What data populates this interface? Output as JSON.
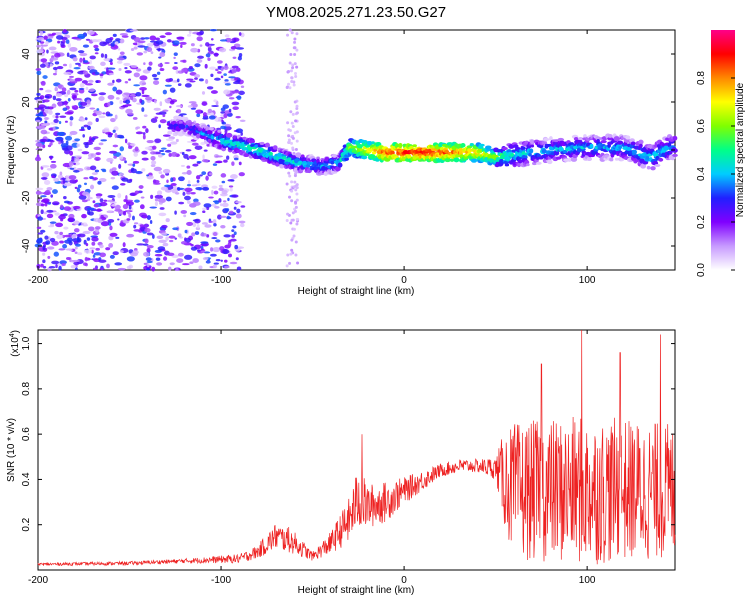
{
  "title": "YM08.2025.271.23.50.G27",
  "colors": {
    "snr_line": "#ee2222",
    "axis": "#000000",
    "background": "#ffffff"
  },
  "chart_data": [
    {
      "type": "heatmap",
      "name": "spectrogram",
      "xlabel": "Height of straight line (km)",
      "ylabel": "Frequency (Hz)",
      "xlim": [
        -200,
        148
      ],
      "ylim": [
        -50,
        50
      ],
      "xticks": [
        -200,
        -100,
        0,
        100
      ],
      "yticks": [
        -40,
        -20,
        0,
        20,
        40
      ],
      "colorbar": {
        "label": "Normalized spectral amplitude",
        "range": [
          0,
          1
        ],
        "ticks": [
          0.0,
          0.2,
          0.4,
          0.6,
          0.8
        ],
        "colormap": [
          "#ffffff",
          "#c79aff",
          "#8000ff",
          "#2020ff",
          "#00ccff",
          "#00ff88",
          "#80ff00",
          "#ffff00",
          "#ff8800",
          "#ff0000",
          "#ff0088"
        ]
      },
      "ridge": [
        {
          "x": -120,
          "f": 10,
          "amp": 0.3
        },
        {
          "x": -100,
          "f": 4,
          "amp": 0.45
        },
        {
          "x": -80,
          "f": 0,
          "amp": 0.5
        },
        {
          "x": -60,
          "f": -5,
          "amp": 0.45
        },
        {
          "x": -45,
          "f": -7,
          "amp": 0.4
        },
        {
          "x": -35,
          "f": -5,
          "amp": 0.45
        },
        {
          "x": -30,
          "f": 1,
          "amp": 0.6
        },
        {
          "x": -10,
          "f": -1,
          "amp": 0.85
        },
        {
          "x": 10,
          "f": -1,
          "amp": 0.9
        },
        {
          "x": 40,
          "f": -1,
          "amp": 0.75
        },
        {
          "x": 50,
          "f": -3,
          "amp": 0.6
        },
        {
          "x": 60,
          "f": -2,
          "amp": 0.45
        },
        {
          "x": 80,
          "f": 0,
          "amp": 0.4
        },
        {
          "x": 100,
          "f": 1,
          "amp": 0.4
        },
        {
          "x": 120,
          "f": 1,
          "amp": 0.4
        },
        {
          "x": 135,
          "f": -3,
          "amp": 0.45
        },
        {
          "x": 148,
          "f": 2,
          "amp": 0.4
        }
      ]
    },
    {
      "type": "line",
      "name": "snr",
      "xlabel": "Height of straight line (km)",
      "ylabel": "SNR (10 * v/v)",
      "scale_label": "(x10",
      "scale_exp": "4",
      "xlim": [
        -200,
        148
      ],
      "ylim": [
        0,
        1.06
      ],
      "xticks": [
        -200,
        -100,
        0,
        100
      ],
      "yticks": [
        0.2,
        0.4,
        0.6,
        0.8,
        1.0
      ],
      "envelope": {
        "x": [
          -200,
          -150,
          -120,
          -90,
          -80,
          -70,
          -60,
          -50,
          -40,
          -30,
          -25,
          -20,
          -10,
          0,
          20,
          30,
          40,
          50,
          55,
          60,
          80,
          100,
          120,
          148
        ],
        "y": [
          0.025,
          0.03,
          0.04,
          0.05,
          0.08,
          0.15,
          0.12,
          0.06,
          0.12,
          0.22,
          0.32,
          0.28,
          0.3,
          0.35,
          0.44,
          0.46,
          0.46,
          0.45,
          0.4,
          0.35,
          0.35,
          0.35,
          0.35,
          0.35
        ],
        "amp": [
          0.006,
          0.008,
          0.01,
          0.02,
          0.03,
          0.06,
          0.05,
          0.02,
          0.05,
          0.1,
          0.14,
          0.1,
          0.09,
          0.06,
          0.03,
          0.03,
          0.03,
          0.05,
          0.22,
          0.3,
          0.32,
          0.33,
          0.32,
          0.3
        ]
      },
      "spikes": [
        {
          "x": -63,
          "y": 0.19
        },
        {
          "x": -23,
          "y": 0.6
        },
        {
          "x": 97,
          "y": 1.06
        },
        {
          "x": 140,
          "y": 1.04
        },
        {
          "x": 118,
          "y": 0.96
        },
        {
          "x": 75,
          "y": 0.91
        }
      ]
    }
  ]
}
